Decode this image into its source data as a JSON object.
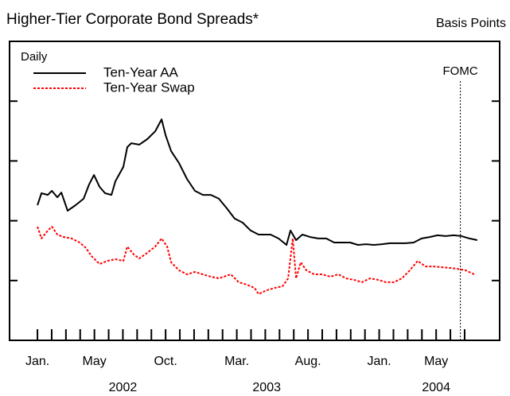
{
  "chart_data": {
    "type": "line",
    "title": "Higher-Tier Corporate Bond Spreads*",
    "y_axis_label": "Basis Points",
    "legend_title": "Daily",
    "xlim": [
      -1.96,
      32.46
    ],
    "xticks": [
      {
        "value": 0,
        "label": "Jan."
      },
      1,
      2,
      3,
      {
        "value": 4,
        "label": "May"
      },
      5,
      6,
      7,
      8,
      {
        "value": 9,
        "label": "Oct."
      },
      10,
      11,
      12,
      13,
      {
        "value": 14,
        "label": "Mar."
      },
      15,
      16,
      17,
      18,
      {
        "value": 19,
        "label": "Aug."
      },
      20,
      21,
      22,
      23,
      {
        "value": 24,
        "label": "Jan."
      },
      25,
      26,
      27,
      {
        "value": 28,
        "label": "May"
      },
      29,
      30
    ],
    "year_labels": [
      {
        "value": 6.0,
        "label": "2002"
      },
      {
        "value": 16.1,
        "label": "2003"
      },
      {
        "value": 28.0,
        "label": "2004"
      }
    ],
    "ylim": [
      0,
      125
    ],
    "yticks": [
      25,
      50,
      75,
      100
    ],
    "vline": {
      "label": "FOMC",
      "x": 29.7
    },
    "series": [
      {
        "name": "Ten-Year AA",
        "color": "#000000",
        "dash": false,
        "x": [
          0,
          0.28,
          0.73,
          1.01,
          1.4,
          1.68,
          2.12,
          2.68,
          3.24,
          3.63,
          3.97,
          4.36,
          4.75,
          5.2,
          5.47,
          6.03,
          6.31,
          6.59,
          7.15,
          7.71,
          8.27,
          8.72,
          9.0,
          9.39,
          9.94,
          10.5,
          11.06,
          11.62,
          12.18,
          12.74,
          13.3,
          13.85,
          14.41,
          14.97,
          15.53,
          16.37,
          16.93,
          17.49,
          17.77,
          18.16,
          18.6,
          19.16,
          19.72,
          20.28,
          20.84,
          21.4,
          21.96,
          22.51,
          23.07,
          23.63,
          24.19,
          24.75,
          25.31,
          25.87,
          26.42,
          26.98,
          27.54,
          28.1,
          28.66,
          29.22,
          29.78,
          30.34,
          30.89
        ],
        "values": [
          56.5,
          61.5,
          60.8,
          62.5,
          59.8,
          61.8,
          54.2,
          56.5,
          59.2,
          65.2,
          69.1,
          64.2,
          61.5,
          60.8,
          66.5,
          72.5,
          80.8,
          82.4,
          81.8,
          84.1,
          87.4,
          92.4,
          85.8,
          79.1,
          74.1,
          67.5,
          62.5,
          60.8,
          60.8,
          59.2,
          55.2,
          50.9,
          49.2,
          45.9,
          44.2,
          44.2,
          42.6,
          39.9,
          45.9,
          41.9,
          44.2,
          43.2,
          42.6,
          42.6,
          40.9,
          40.9,
          40.9,
          39.9,
          40.2,
          39.9,
          40.2,
          40.6,
          40.6,
          40.6,
          40.9,
          42.6,
          43.2,
          43.9,
          43.6,
          43.9,
          43.6,
          42.6,
          41.9
        ]
      },
      {
        "name": "Ten-Year Swap",
        "color": "#ff0000",
        "dash": true,
        "x": [
          0,
          0.28,
          0.73,
          1.01,
          1.4,
          1.84,
          2.4,
          2.96,
          3.41,
          3.8,
          4.36,
          4.92,
          5.47,
          6.03,
          6.31,
          6.76,
          7.15,
          7.71,
          8.27,
          8.72,
          9.11,
          9.39,
          9.94,
          10.5,
          11.06,
          11.62,
          12.18,
          12.74,
          13.58,
          14.13,
          14.69,
          15.25,
          15.53,
          16.09,
          16.65,
          17.21,
          17.6,
          17.93,
          18.16,
          18.49,
          18.88,
          19.44,
          20.0,
          20.56,
          21.12,
          21.68,
          22.23,
          22.79,
          23.35,
          23.91,
          24.47,
          25.03,
          25.59,
          26.15,
          26.7,
          27.26,
          27.82,
          28.38,
          28.94,
          29.5,
          30.06,
          30.78
        ],
        "values": [
          47.5,
          42.6,
          45.9,
          47.5,
          44.2,
          43.2,
          42.6,
          40.9,
          38.6,
          35.2,
          31.9,
          33.2,
          33.9,
          33.2,
          39.2,
          35.9,
          34.2,
          36.6,
          39.2,
          42.6,
          39.2,
          32.6,
          29.3,
          27.6,
          28.6,
          27.6,
          26.6,
          25.9,
          27.6,
          24.3,
          23.3,
          21.9,
          19.3,
          20.9,
          21.9,
          22.6,
          25.9,
          42.6,
          25.9,
          32.6,
          29.3,
          27.6,
          27.6,
          26.6,
          27.6,
          25.9,
          25.3,
          24.3,
          25.9,
          25.3,
          24.3,
          24.3,
          25.9,
          29.3,
          33.2,
          30.9,
          30.9,
          30.6,
          30.3,
          29.9,
          29.3,
          27.3
        ]
      }
    ]
  }
}
